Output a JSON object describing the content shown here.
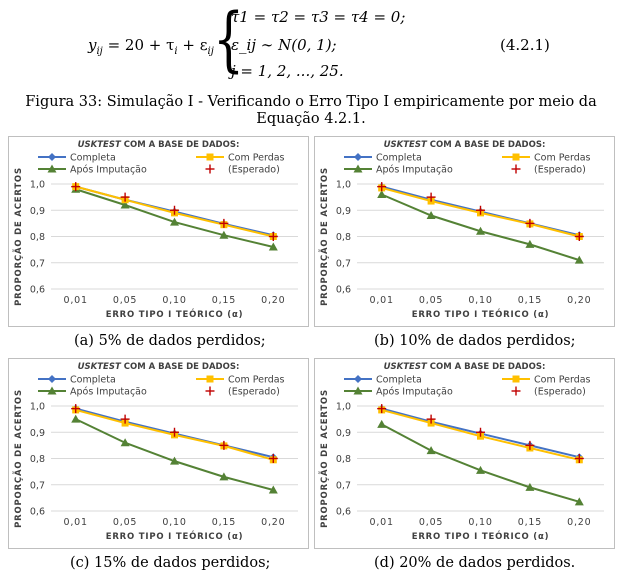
{
  "equation": {
    "lhs": "y_ij = 20 + τ_i + ε_ij",
    "lhs_parts": [
      "y",
      "ij",
      " = 20 + τ",
      "i",
      " + ε",
      "ij"
    ],
    "line1": "τ1 = τ2 = τ3 = τ4 = 0;",
    "line2": "ε_ij ∼ N(0, 1);",
    "line3": "j = 1,  2, ...,  25.",
    "number": "(4.2.1)"
  },
  "figure_caption_line1": "Figura 33: Simulação I - Verificando o Erro Tipo I empiricamente por meio da",
  "figure_caption_line2": "Equação 4.2.1.",
  "panel_common": {
    "title_prefix": "USKTEST",
    "title_rest": " COM A BASE DE DADOS:",
    "ylabel": "PROPORÇÃO DE ACERTOS",
    "xlabel": "ERRO TIPO I TEÓRICO (α)",
    "legend": [
      "Completa",
      "Com Perdas",
      "Após Imputação",
      "(Esperado)"
    ]
  },
  "colors": {
    "completa": "#4472C4",
    "com_perdas": "#FFC000",
    "apos": "#548235",
    "esperado": "#C00000"
  },
  "chart_data": [
    {
      "type": "line",
      "subcaption": "(a) 5% de dados perdidos;",
      "title": "USKTEST COM A BASE DE DADOS:",
      "xlabel": "ERRO TIPO I TEÓRICO (α)",
      "ylabel": "PROPORÇÃO DE ACERTOS",
      "categories": [
        "0,01",
        "0,05",
        "0,10",
        "0,15",
        "0,20"
      ],
      "ylim": [
        0.6,
        1.0
      ],
      "yticks": [
        "0,6",
        "0,7",
        "0,8",
        "0,9",
        "1,0"
      ],
      "grid": true,
      "legend_position": "top",
      "series": [
        {
          "name": "Completa",
          "values": [
            0.99,
            0.94,
            0.895,
            0.848,
            0.805
          ]
        },
        {
          "name": "Com Perdas",
          "values": [
            0.99,
            0.94,
            0.89,
            0.845,
            0.8
          ]
        },
        {
          "name": "Após Imputação",
          "values": [
            0.98,
            0.92,
            0.855,
            0.805,
            0.76
          ]
        },
        {
          "name": "(Esperado)",
          "values": [
            0.99,
            0.95,
            0.9,
            0.85,
            0.8
          ]
        }
      ]
    },
    {
      "type": "line",
      "subcaption": "(b) 10% de dados perdidos;",
      "title": "USKTEST COM A BASE DE DADOS:",
      "xlabel": "ERRO TIPO I TEÓRICO (α)",
      "ylabel": "PROPORÇÃO DE ACERTOS",
      "categories": [
        "0,01",
        "0,05",
        "0,10",
        "0,15",
        "0,20"
      ],
      "ylim": [
        0.6,
        1.0
      ],
      "yticks": [
        "0,6",
        "0,7",
        "0,8",
        "0,9",
        "1,0"
      ],
      "grid": true,
      "legend_position": "top",
      "series": [
        {
          "name": "Completa",
          "values": [
            0.99,
            0.94,
            0.895,
            0.85,
            0.805
          ]
        },
        {
          "name": "Com Perdas",
          "values": [
            0.985,
            0.935,
            0.89,
            0.848,
            0.8
          ]
        },
        {
          "name": "Após Imputação",
          "values": [
            0.96,
            0.88,
            0.82,
            0.77,
            0.71
          ]
        },
        {
          "name": "(Esperado)",
          "values": [
            0.99,
            0.95,
            0.9,
            0.85,
            0.8
          ]
        }
      ]
    },
    {
      "type": "line",
      "subcaption": "(c) 15% de dados perdidos;",
      "title": "USKTEST COM A BASE DE DADOS:",
      "xlabel": "ERRO TIPO I TEÓRICO (α)",
      "ylabel": "PROPORÇÃO DE ACERTOS",
      "categories": [
        "0,01",
        "0,05",
        "0,10",
        "0,15",
        "0,20"
      ],
      "ylim": [
        0.6,
        1.0
      ],
      "yticks": [
        "0,6",
        "0,7",
        "0,8",
        "0,9",
        "1,0"
      ],
      "grid": true,
      "legend_position": "top",
      "series": [
        {
          "name": "Completa",
          "values": [
            0.99,
            0.94,
            0.895,
            0.85,
            0.805
          ]
        },
        {
          "name": "Com Perdas",
          "values": [
            0.985,
            0.935,
            0.89,
            0.848,
            0.795
          ]
        },
        {
          "name": "Após Imputação",
          "values": [
            0.95,
            0.86,
            0.79,
            0.73,
            0.68
          ]
        },
        {
          "name": "(Esperado)",
          "values": [
            0.99,
            0.95,
            0.9,
            0.85,
            0.8
          ]
        }
      ]
    },
    {
      "type": "line",
      "subcaption": "(d) 20% de dados perdidos.",
      "title": "USKTEST COM A BASE DE DADOS:",
      "xlabel": "ERRO TIPO I TEÓRICO (α)",
      "ylabel": "PROPORÇÃO DE ACERTOS",
      "categories": [
        "0,01",
        "0,05",
        "0,10",
        "0,15",
        "0,20"
      ],
      "ylim": [
        0.6,
        1.0
      ],
      "yticks": [
        "0,6",
        "0,7",
        "0,8",
        "0,9",
        "1,0"
      ],
      "grid": true,
      "legend_position": "top",
      "series": [
        {
          "name": "Completa",
          "values": [
            0.99,
            0.94,
            0.895,
            0.85,
            0.805
          ]
        },
        {
          "name": "Com Perdas",
          "values": [
            0.985,
            0.935,
            0.885,
            0.84,
            0.795
          ]
        },
        {
          "name": "Após Imputação",
          "values": [
            0.93,
            0.83,
            0.755,
            0.69,
            0.635
          ]
        },
        {
          "name": "(Esperado)",
          "values": [
            0.99,
            0.95,
            0.9,
            0.85,
            0.8
          ]
        }
      ]
    }
  ]
}
